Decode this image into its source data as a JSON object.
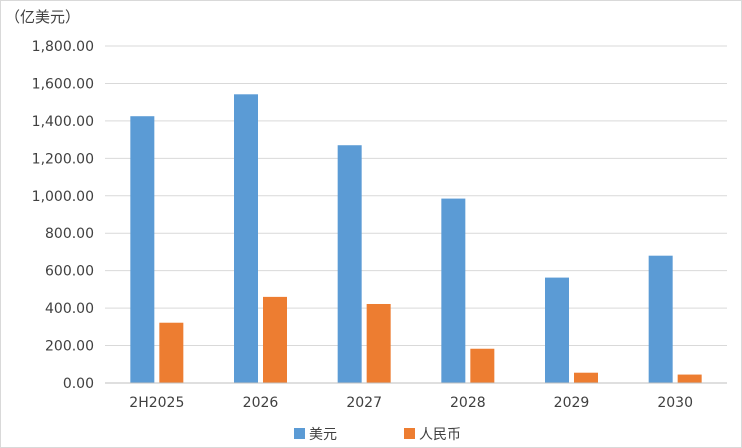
{
  "chart_data": {
    "type": "bar",
    "unit_label": "（亿美元）",
    "categories": [
      "2H2025",
      "2026",
      "2027",
      "2028",
      "2029",
      "2030"
    ],
    "series": [
      {
        "name": "美元",
        "color": "#5b9bd5",
        "values": [
          1425,
          1542,
          1270,
          985,
          563,
          680
        ]
      },
      {
        "name": "人民币",
        "color": "#ed7d31",
        "values": [
          322,
          460,
          422,
          183,
          55,
          45
        ]
      }
    ],
    "yticks": [
      "0.00",
      "200.00",
      "400.00",
      "600.00",
      "800.00",
      "1,000.00",
      "1,200.00",
      "1,400.00",
      "1,600.00",
      "1,800.00"
    ],
    "ylim": [
      0,
      1800
    ],
    "grid": true,
    "legend_position": "bottom"
  }
}
